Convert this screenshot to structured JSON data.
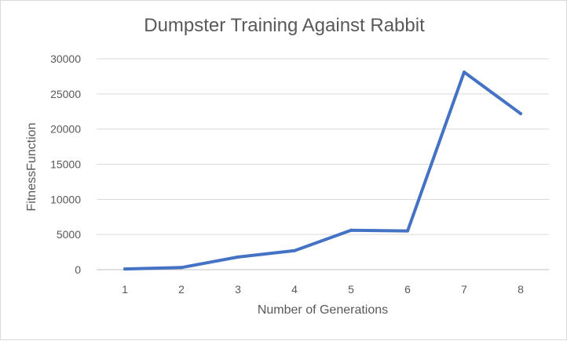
{
  "chart_data": {
    "type": "line",
    "title": "Dumpster Training Against Rabbit",
    "xlabel": "Number of Generations",
    "ylabel": "FitnessFunction",
    "categories": [
      "1",
      "2",
      "3",
      "4",
      "5",
      "6",
      "7",
      "8"
    ],
    "series": [
      {
        "values": [
          100,
          300,
          1800,
          2700,
          5600,
          5500,
          28100,
          22200
        ],
        "color": "#4472c4"
      }
    ],
    "ylim": [
      0,
      30000
    ],
    "yticks": [
      0,
      5000,
      10000,
      15000,
      20000,
      25000,
      30000
    ],
    "ytick_labels": [
      "0",
      "5000",
      "10000",
      "15000",
      "20000",
      "25000",
      "30000"
    ],
    "grid": true,
    "legend": "none"
  }
}
